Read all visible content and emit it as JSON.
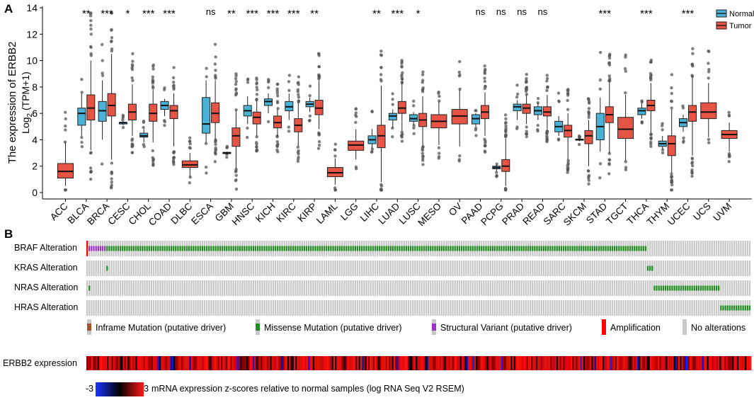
{
  "panel_labels": {
    "a": "A",
    "b": "B"
  },
  "colors": {
    "normal": "#4AB2D6",
    "tumor": "#E55444",
    "outlier": "#555555"
  },
  "chart_data": [
    {
      "type": "boxplot",
      "ylabel_line1": "The expression of ERBB2",
      "ylabel_line2_prefix": "Log",
      "ylabel_line2_sub": "2",
      "ylabel_line2_suffix": " (TPM+1)",
      "ylim": [
        0,
        14
      ],
      "yticks": [
        "0",
        "2",
        "4",
        "6",
        "8",
        "10",
        "12",
        "14"
      ],
      "legend": {
        "normal": "Normal",
        "tumor": "Tumor",
        "position": "top-right"
      },
      "categories": [
        "ACC",
        "BLCA",
        "BRCA",
        "CESC",
        "CHOL",
        "COAD",
        "DLBC",
        "ESCA",
        "GBM",
        "HNSC",
        "KICH",
        "KIRC",
        "KIRP",
        "LAML",
        "LGG",
        "LIHC",
        "LUAD",
        "LUSC",
        "MESO",
        "OV",
        "PAAD",
        "PCPG",
        "PRAD",
        "READ",
        "SARC",
        "SKCM",
        "STAD",
        "TGCT",
        "THCA",
        "THYM",
        "UCEC",
        "UCS",
        "UVM"
      ],
      "significance": [
        "",
        "**",
        "***",
        "*",
        "***",
        "***",
        "",
        "ns",
        "**",
        "***",
        "***",
        "***",
        "**",
        "",
        "",
        "**",
        "***",
        "*",
        "",
        "",
        "ns",
        "ns",
        "ns",
        "ns",
        "",
        "",
        "***",
        "",
        "***",
        "",
        "***",
        "",
        ""
      ],
      "normal": [
        null,
        [
          4.3,
          5.1,
          6.0,
          6.4,
          7.5
        ],
        [
          4.0,
          5.4,
          6.2,
          6.9,
          8.5
        ],
        [
          5.1,
          5.2,
          5.3,
          5.3,
          5.4
        ],
        [
          3.8,
          4.2,
          4.3,
          4.5,
          4.8
        ],
        [
          5.8,
          6.3,
          6.6,
          6.9,
          7.1
        ],
        null,
        [
          3.8,
          4.5,
          5.2,
          7.2,
          8.5
        ],
        [
          2.9,
          2.95,
          3.0,
          3.05,
          3.1
        ],
        [
          5.2,
          5.8,
          6.2,
          6.6,
          7.3
        ],
        [
          6.0,
          6.6,
          6.9,
          7.1,
          7.5
        ],
        [
          5.5,
          6.2,
          6.5,
          6.9,
          7.5
        ],
        [
          6.1,
          6.5,
          6.7,
          6.9,
          7.2
        ],
        null,
        null,
        [
          3.3,
          3.7,
          4.0,
          4.3,
          4.8
        ],
        [
          4.9,
          5.5,
          5.8,
          6.0,
          6.3
        ],
        [
          5.1,
          5.4,
          5.6,
          5.9,
          6.1
        ],
        null,
        null,
        [
          5.0,
          5.2,
          5.6,
          5.9,
          6.0
        ],
        [
          1.6,
          1.8,
          1.9,
          2.0,
          2.1
        ],
        [
          5.5,
          6.2,
          6.5,
          6.7,
          7.0
        ],
        [
          5.5,
          5.9,
          6.2,
          6.5,
          6.8
        ],
        [
          4.3,
          4.6,
          5.0,
          5.4,
          5.8
        ],
        [
          3.9,
          4.0,
          4.0,
          4.05,
          4.1
        ],
        [
          3.1,
          4.0,
          5.0,
          6.0,
          7.2
        ],
        null,
        [
          5.6,
          5.9,
          6.2,
          6.4,
          6.8
        ],
        [
          3.3,
          3.5,
          3.7,
          3.9,
          4.3
        ],
        [
          4.6,
          5.0,
          5.3,
          5.6,
          5.9
        ],
        null,
        null
      ],
      "tumor": [
        [
          0.5,
          1.1,
          1.6,
          2.2,
          3.8
        ],
        [
          3.2,
          5.5,
          6.4,
          7.4,
          10.0
        ],
        [
          2.5,
          5.8,
          6.6,
          7.5,
          10.5
        ],
        [
          4.3,
          5.5,
          6.1,
          6.7,
          8.2
        ],
        [
          3.8,
          5.4,
          6.0,
          6.7,
          7.8
        ],
        [
          3.5,
          5.6,
          6.2,
          6.6,
          7.5
        ],
        [
          1.2,
          1.9,
          2.1,
          2.4,
          3.0
        ],
        [
          4.0,
          5.3,
          6.0,
          6.8,
          8.5
        ],
        [
          1.8,
          3.5,
          4.3,
          4.9,
          6.2
        ],
        [
          4.3,
          5.2,
          5.7,
          6.1,
          7.0
        ],
        [
          4.3,
          4.9,
          5.3,
          5.8,
          6.3
        ],
        [
          3.5,
          4.6,
          5.1,
          5.6,
          6.8
        ],
        [
          4.8,
          5.9,
          6.4,
          7.0,
          8.5
        ],
        [
          0.6,
          1.2,
          1.5,
          1.9,
          2.6
        ],
        [
          2.5,
          3.2,
          3.6,
          3.9,
          4.8
        ],
        [
          0.8,
          3.4,
          4.3,
          5.1,
          8.1
        ],
        [
          4.7,
          6.0,
          6.4,
          6.9,
          8.3
        ],
        [
          3.5,
          5.0,
          5.5,
          6.0,
          7.3
        ],
        [
          3.6,
          4.9,
          5.4,
          5.9,
          6.9
        ],
        [
          3.5,
          5.2,
          5.8,
          6.3,
          7.8
        ],
        [
          4.3,
          5.6,
          6.1,
          6.6,
          7.6
        ],
        [
          0.5,
          1.6,
          2.0,
          2.5,
          4.1
        ],
        [
          5.2,
          6.0,
          6.4,
          6.7,
          7.4
        ],
        [
          4.8,
          5.8,
          6.1,
          6.5,
          7.4
        ],
        [
          2.5,
          4.2,
          4.7,
          5.1,
          6.0
        ],
        [
          2.0,
          3.7,
          4.3,
          4.7,
          5.5
        ],
        [
          3.0,
          5.3,
          5.9,
          6.5,
          8.4
        ],
        [
          2.4,
          4.1,
          4.8,
          5.7,
          7.4
        ],
        [
          4.5,
          6.2,
          6.6,
          7.0,
          8.3
        ],
        [
          1.5,
          2.8,
          3.7,
          4.3,
          6.3
        ],
        [
          2.8,
          5.4,
          6.1,
          6.6,
          8.8
        ],
        [
          4.2,
          5.6,
          6.1,
          6.8,
          8.3
        ],
        [
          3.1,
          4.1,
          4.4,
          4.7,
          5.3
        ]
      ]
    },
    {
      "type": "oncoprint",
      "rows": [
        "BRAF Alteration",
        "KRAS Alteration",
        "NRAS Alteration",
        "HRAS Alteration"
      ],
      "legend": [
        {
          "label": "Inframe Mutation (putative driver)",
          "color": "#A0522D"
        },
        {
          "label": "Missense Mutation (putative driver)",
          "color": "#1E8B1E"
        },
        {
          "label": "Structural Variant (putative driver)",
          "color": "#9B30C8"
        },
        {
          "label": "Amplification",
          "color": "#FF0000"
        },
        {
          "label": "No alterations",
          "color": "#C8C8C8"
        }
      ],
      "expression_label": "ERBB2 expression",
      "scale_min": "-3",
      "scale_max": "3",
      "scale_caption": "mRNA expression z-scores relative to normal samples (log RNA Seq V2 RSEM)"
    }
  ]
}
